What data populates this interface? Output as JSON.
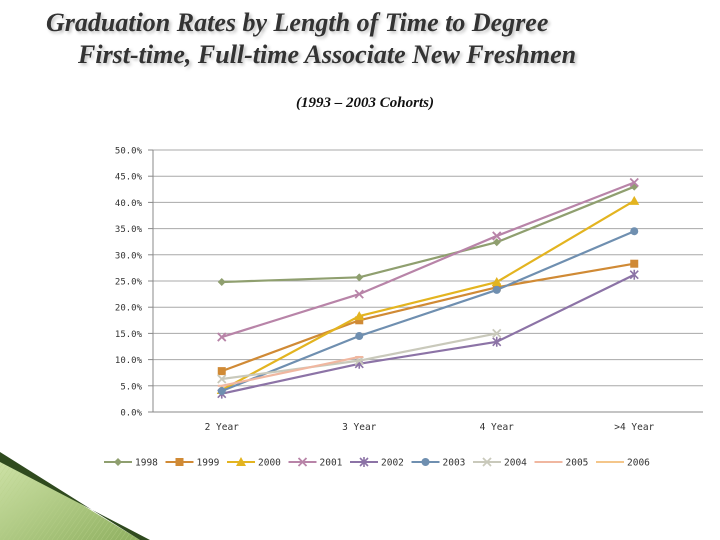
{
  "slide": {
    "title_line1": "Graduation Rates by Length of Time to Degree",
    "title_line2": "First-time, Full-time Associate New Freshmen",
    "subtitle": "(1993 – 2003 Cohorts)"
  },
  "chart_data": {
    "type": "line",
    "title": "",
    "xlabel": "",
    "ylabel": "",
    "categories": [
      "2 Year",
      "3 Year",
      "4 Year",
      ">4 Year"
    ],
    "ylim": [
      0,
      50
    ],
    "yticks": [
      "0.0%",
      "5.0%",
      "10.0%",
      "15.0%",
      "20.0%",
      "25.0%",
      "30.0%",
      "35.0%",
      "40.0%",
      "45.0%",
      "50.0%"
    ],
    "grid": true,
    "legend_position": "bottom",
    "series": [
      {
        "name": "1998",
        "color": "#8f9f6f",
        "marker": "diamond",
        "values": [
          24.8,
          25.7,
          32.4,
          43.0
        ]
      },
      {
        "name": "1999",
        "color": "#d08a35",
        "marker": "square",
        "values": [
          7.8,
          17.5,
          23.8,
          28.3
        ]
      },
      {
        "name": "2000",
        "color": "#e3b420",
        "marker": "triangle",
        "values": [
          4.2,
          18.3,
          24.8,
          40.3
        ]
      },
      {
        "name": "2001",
        "color": "#b884a8",
        "marker": "x",
        "values": [
          14.3,
          22.5,
          33.6,
          43.8
        ]
      },
      {
        "name": "2002",
        "color": "#8c73a6",
        "marker": "star",
        "values": [
          3.5,
          9.2,
          13.4,
          26.2
        ]
      },
      {
        "name": "2003",
        "color": "#6f8fb0",
        "marker": "circle",
        "values": [
          4.0,
          14.5,
          23.3,
          34.5
        ]
      },
      {
        "name": "2004",
        "color": "#c9c9bb",
        "marker": "x",
        "values": [
          6.3,
          9.8,
          15.0,
          null
        ]
      },
      {
        "name": "2005",
        "color": "#f0b7a0",
        "marker": "dash",
        "values": [
          5.0,
          10.5,
          null,
          null
        ]
      },
      {
        "name": "2006",
        "color": "#f4c68a",
        "marker": "dash",
        "values": [
          null,
          null,
          null,
          null
        ]
      }
    ]
  }
}
